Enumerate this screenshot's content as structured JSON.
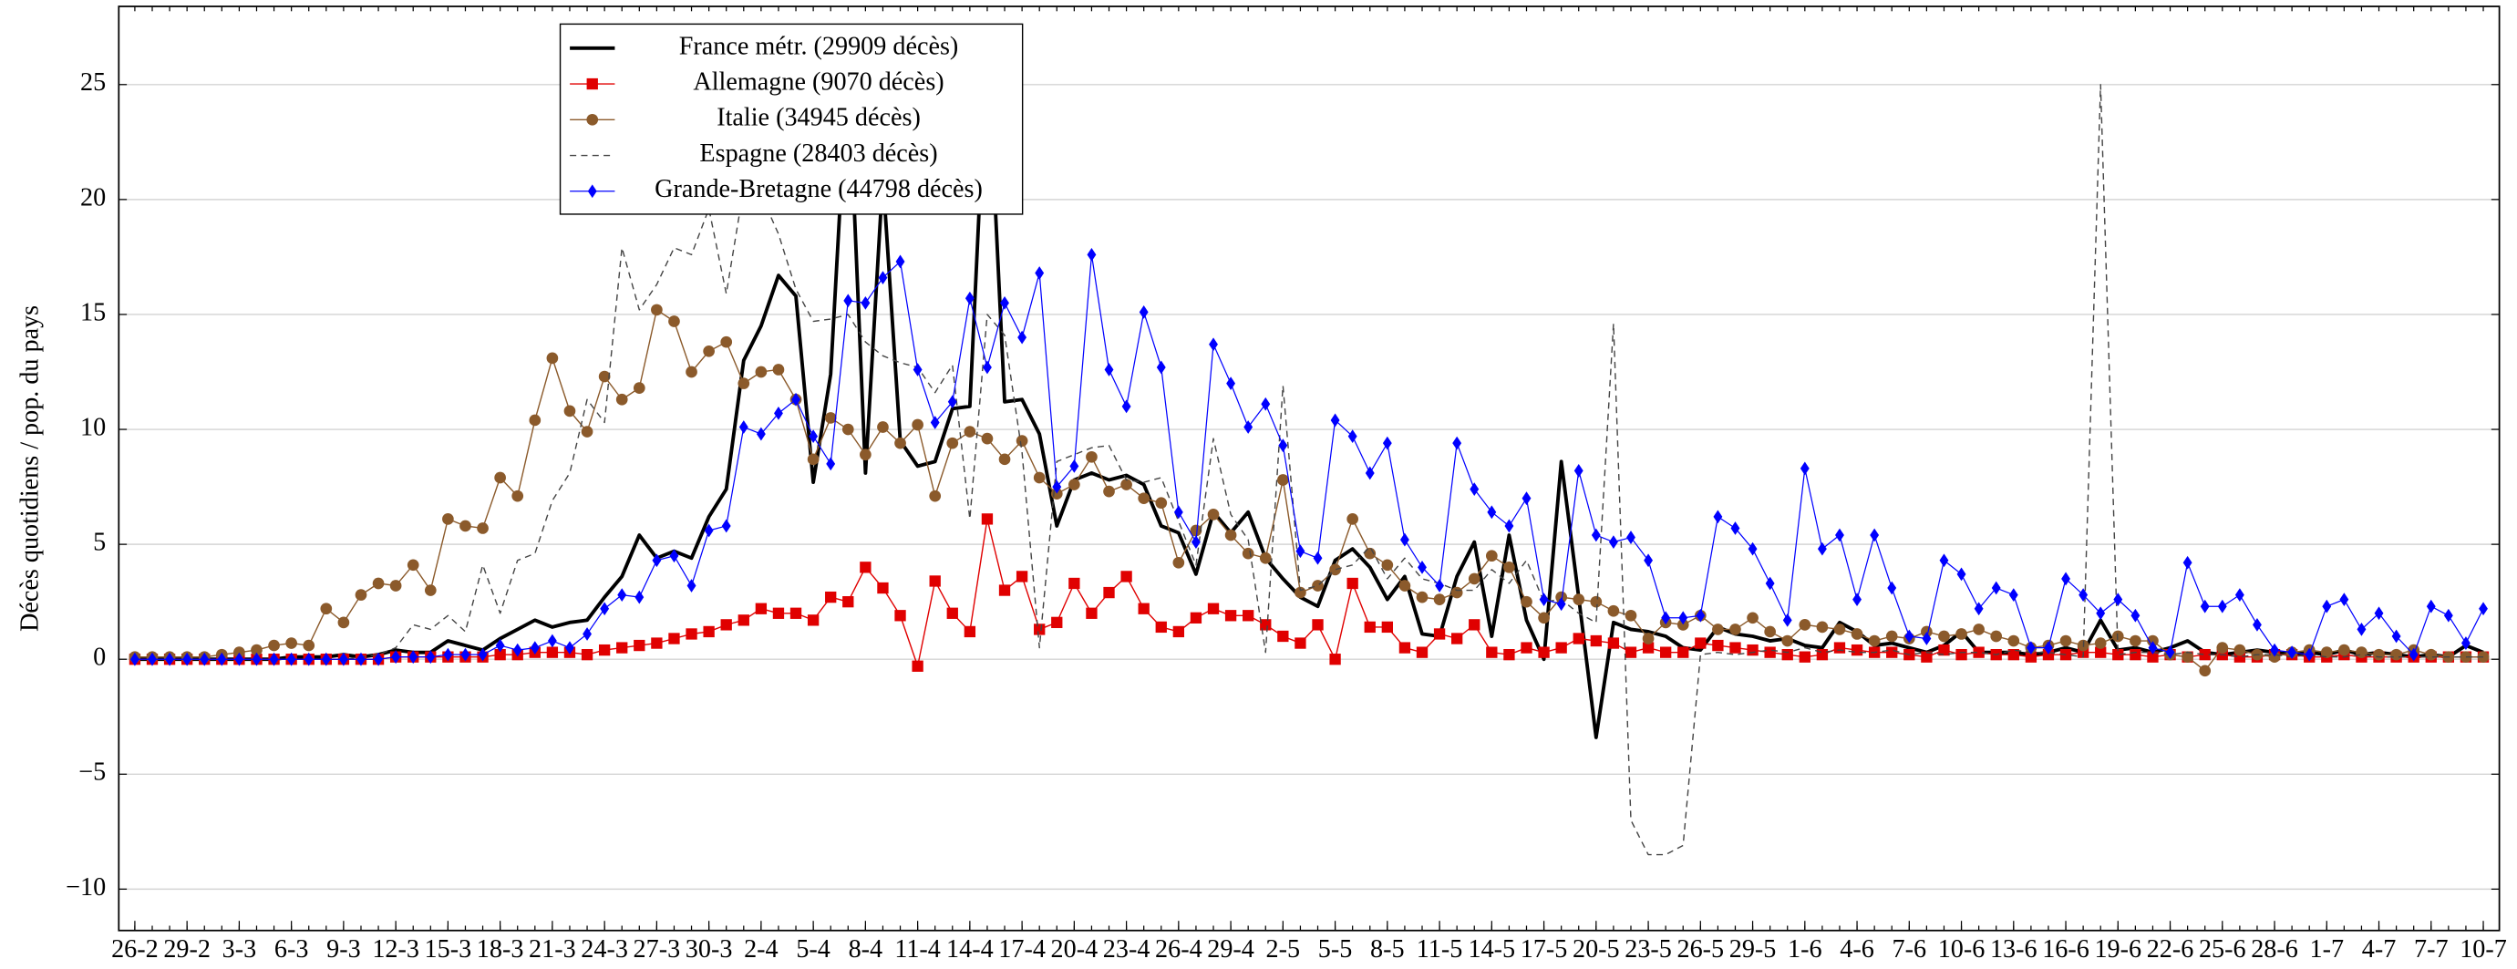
{
  "chart_data": {
    "type": "line",
    "ylabel": "Décès quotidiens / pop. du pays",
    "ylim": [
      -11.8,
      28.4
    ],
    "yticks": [
      {
        "value": -10,
        "label": "−10"
      },
      {
        "value": -5,
        "label": "−5"
      },
      0,
      5,
      10,
      15,
      20,
      25
    ],
    "grid": true,
    "legend": "upper-left",
    "categories": [
      "26-2",
      null,
      null,
      "29-2",
      null,
      null,
      "3-3",
      null,
      null,
      "6-3",
      null,
      null,
      "9-3",
      null,
      null,
      "12-3",
      null,
      null,
      "15-3",
      null,
      null,
      "18-3",
      null,
      null,
      "21-3",
      null,
      null,
      "24-3",
      null,
      null,
      "27-3",
      null,
      null,
      "30-3",
      null,
      null,
      "2-4",
      null,
      null,
      "5-4",
      null,
      null,
      "8-4",
      null,
      null,
      "11-4",
      null,
      null,
      "14-4",
      null,
      null,
      "17-4",
      null,
      null,
      "20-4",
      null,
      null,
      "23-4",
      null,
      null,
      "26-4",
      null,
      null,
      "29-4",
      null,
      null,
      "2-5",
      null,
      null,
      "5-5",
      null,
      null,
      "8-5",
      null,
      null,
      "11-5",
      null,
      null,
      "14-5",
      null,
      null,
      "17-5",
      null,
      null,
      "20-5",
      null,
      null,
      "23-5",
      null,
      null,
      "26-5",
      null,
      null,
      "29-5",
      null,
      null,
      "1-6",
      null,
      null,
      "4-6",
      null,
      null,
      "7-6",
      null,
      null,
      "10-6",
      null,
      null,
      "13-6",
      null,
      null,
      "16-6",
      null,
      null,
      "19-6",
      null,
      null,
      "22-6",
      null,
      null,
      "25-6",
      null,
      null,
      "28-6",
      null,
      null,
      "1-7",
      null,
      null,
      "4-7",
      null,
      null,
      "7-7",
      null,
      null,
      "10-7"
    ],
    "series": [
      {
        "name": "France métr. (29909 décès)",
        "color": "#000000",
        "width": 2.2,
        "values": [
          0,
          0,
          0,
          0,
          0,
          0,
          0,
          0,
          0,
          0.1,
          0.1,
          0.1,
          0.2,
          0.1,
          0.2,
          0.4,
          0.3,
          0.3,
          0.8,
          0.6,
          0.4,
          0.9,
          1.3,
          1.7,
          1.4,
          1.6,
          1.7,
          2.7,
          3.6,
          5.4,
          4.4,
          4.7,
          4.4,
          6.2,
          7.4,
          13.0,
          14.5,
          16.7,
          15.8,
          7.7,
          12.4,
          26.0,
          8.1,
          21.0,
          9.5,
          8.4,
          8.6,
          10.9,
          11.0,
          27.0,
          11.2,
          11.3,
          9.8,
          5.8,
          7.8,
          8.1,
          7.8,
          8.0,
          7.6,
          5.8,
          5.5,
          3.7,
          6.4,
          5.5,
          6.4,
          4.4,
          3.5,
          2.7,
          2.3,
          4.3,
          4.8,
          4.0,
          2.6,
          3.6,
          1.1,
          1.0,
          3.6,
          5.1,
          1.0,
          5.4,
          1.7,
          0.0,
          8.6,
          2.7,
          -3.4,
          1.6,
          1.3,
          1.2,
          1.0,
          0.5,
          0.4,
          1.4,
          1.1,
          1.0,
          0.8,
          0.9,
          0.6,
          0.5,
          1.6,
          1.2,
          0.6,
          0.7,
          0.5,
          0.3,
          0.6,
          1.2,
          0.3,
          0.3,
          0.3,
          0.2,
          0.3,
          0.5,
          0.3,
          1.7,
          0.4,
          0.5,
          0.3,
          0.5,
          0.8,
          0.3,
          0.2,
          0.3,
          0.4,
          0.3,
          0.2,
          0.3,
          0.2,
          0.4,
          0.2,
          0.3,
          0.2,
          0.1,
          0.2,
          0.1,
          0.6,
          0.3
        ]
      },
      {
        "name": "Allemagne (9070 décès)",
        "color": "#e00000",
        "width": 0.8,
        "marker": "square",
        "values": [
          0,
          0,
          0,
          0,
          0,
          0,
          0,
          0,
          0,
          0,
          0,
          0,
          0,
          0,
          0,
          0.1,
          0.1,
          0.1,
          0.1,
          0.1,
          0.1,
          0.2,
          0.2,
          0.3,
          0.3,
          0.3,
          0.2,
          0.4,
          0.5,
          0.6,
          0.7,
          0.9,
          1.1,
          1.2,
          1.5,
          1.7,
          2.2,
          2.0,
          2.0,
          1.7,
          2.7,
          2.5,
          4.0,
          3.1,
          1.9,
          -0.3,
          3.4,
          2.0,
          1.2,
          6.1,
          3.0,
          3.6,
          1.3,
          1.6,
          3.3,
          2.0,
          2.9,
          3.6,
          2.2,
          1.4,
          1.2,
          1.8,
          2.2,
          1.9,
          1.9,
          1.5,
          1.0,
          0.7,
          1.5,
          0.0,
          3.3,
          1.4,
          1.4,
          0.5,
          0.3,
          1.1,
          0.9,
          1.5,
          0.3,
          0.2,
          0.5,
          0.3,
          0.5,
          0.9,
          0.8,
          0.7,
          0.3,
          0.5,
          0.3,
          0.3,
          0.7,
          0.6,
          0.5,
          0.4,
          0.3,
          0.2,
          0.1,
          0.2,
          0.5,
          0.4,
          0.3,
          0.3,
          0.2,
          0.1,
          0.4,
          0.2,
          0.3,
          0.2,
          0.2,
          0.1,
          0.2,
          0.2,
          0.3,
          0.3,
          0.2,
          0.2,
          0.1,
          0.2,
          0.1,
          0.2,
          0.2,
          0.1,
          0.1,
          0.2,
          0.2,
          0.1,
          0.1,
          0.2,
          0.1,
          0.1,
          0.1,
          0.1,
          0.1,
          0.1,
          0.1,
          0.1
        ]
      },
      {
        "name": "Italie (34945 décès)",
        "color": "#8b5a2b",
        "width": 0.8,
        "marker": "circle",
        "values": [
          0.1,
          0.1,
          0.1,
          0.1,
          0.1,
          0.2,
          0.3,
          0.4,
          0.6,
          0.7,
          0.6,
          2.2,
          1.6,
          2.8,
          3.3,
          3.2,
          4.1,
          3.0,
          6.1,
          5.8,
          5.7,
          7.9,
          7.1,
          10.4,
          13.1,
          10.8,
          9.9,
          12.3,
          11.3,
          11.8,
          15.2,
          14.7,
          12.5,
          13.4,
          13.8,
          12.0,
          12.5,
          12.6,
          11.3,
          8.7,
          10.5,
          10.0,
          8.9,
          10.1,
          9.4,
          10.2,
          7.1,
          9.4,
          9.9,
          9.6,
          8.7,
          9.5,
          7.9,
          7.2,
          7.6,
          8.8,
          7.3,
          7.6,
          7.0,
          6.8,
          4.2,
          5.6,
          6.3,
          5.4,
          4.6,
          4.4,
          7.8,
          2.9,
          3.2,
          3.9,
          6.1,
          4.6,
          4.1,
          3.2,
          2.7,
          2.6,
          2.9,
          3.5,
          4.5,
          4.0,
          2.5,
          1.8,
          2.7,
          2.6,
          2.5,
          2.1,
          1.9,
          0.9,
          1.6,
          1.5,
          1.9,
          1.3,
          1.3,
          1.8,
          1.2,
          0.8,
          1.5,
          1.4,
          1.3,
          1.1,
          0.8,
          1.0,
          0.9,
          1.2,
          1.0,
          1.1,
          1.3,
          1.0,
          0.8,
          0.5,
          0.6,
          0.8,
          0.6,
          0.7,
          1.0,
          0.8,
          0.8,
          0.2,
          0.1,
          -0.5,
          0.5,
          0.4,
          0.2,
          0.1,
          0.3,
          0.4,
          0.3,
          0.4,
          0.3,
          0.2,
          0.2,
          0.4,
          0.2,
          0.1,
          0.1,
          0.1
        ]
      },
      {
        "name": "Espagne (28403 décès)",
        "color": "#444444",
        "width": 0.8,
        "dash": "4,3",
        "values": [
          0,
          0,
          0,
          0,
          0,
          0,
          0,
          0,
          0,
          0,
          0,
          0,
          0,
          0.1,
          0.2,
          0.5,
          1.5,
          1.3,
          1.9,
          1.2,
          4.1,
          2.0,
          4.3,
          4.6,
          6.9,
          8.1,
          11.3,
          10.3,
          17.9,
          15.2,
          16.3,
          17.9,
          17.6,
          19.6,
          15.9,
          20.5,
          20.2,
          18.5,
          16.1,
          14.7,
          14.8,
          15.0,
          13.8,
          13.2,
          12.9,
          12.7,
          11.6,
          12.8,
          6.1,
          15.0,
          14.1,
          9.0,
          0.5,
          8.6,
          8.9,
          9.2,
          9.3,
          7.8,
          7.7,
          7.9,
          6.0,
          4.1,
          9.6,
          6.3,
          5.2,
          0.3,
          11.9,
          3.0,
          3.2,
          3.9,
          4.1,
          4.9,
          3.5,
          4.4,
          3.5,
          3.3,
          3.0,
          3.0,
          3.9,
          3.3,
          4.3,
          2.5,
          2.6,
          2.0,
          1.6,
          14.6,
          -7.0,
          -8.5,
          -8.5,
          -8.1,
          0.2,
          0.3,
          0.2,
          0.3,
          0.4,
          0.3,
          0.5,
          0.3,
          0.4,
          0.3,
          0.3,
          0.4,
          0.2,
          0.3,
          0.2,
          0.3,
          0.3,
          0.2,
          0.4,
          0.3,
          0.3,
          0.2,
          0.1,
          25.0,
          0.2,
          0.3,
          0.3,
          0.2,
          0.3,
          0.2,
          0.2,
          0.1,
          0.2,
          0.2,
          0.1,
          0.2,
          0.1,
          0.1,
          0.2,
          0.1,
          0.1,
          0.1,
          0.1,
          0.1,
          0.1,
          0.1
        ]
      },
      {
        "name": "Grande-Bretagne (44798 décès)",
        "color": "#0000ff",
        "width": 0.7,
        "marker": "diamond",
        "values": [
          0,
          0,
          0,
          0,
          0,
          0,
          0,
          0,
          0,
          0,
          0,
          0,
          0,
          0,
          0,
          0.1,
          0.1,
          0.1,
          0.2,
          0.2,
          0.2,
          0.6,
          0.4,
          0.5,
          0.8,
          0.5,
          1.1,
          2.2,
          2.8,
          2.7,
          4.3,
          4.5,
          3.2,
          5.6,
          5.8,
          10.1,
          9.8,
          10.7,
          11.3,
          9.7,
          8.5,
          15.6,
          15.5,
          16.6,
          17.3,
          12.6,
          10.3,
          11.2,
          15.7,
          12.7,
          15.5,
          14.0,
          16.8,
          7.5,
          8.4,
          17.6,
          12.6,
          11.0,
          15.1,
          12.7,
          6.4,
          5.1,
          13.7,
          12.0,
          10.1,
          11.1,
          9.3,
          4.7,
          4.4,
          10.4,
          9.7,
          8.1,
          9.4,
          5.2,
          4.0,
          3.2,
          9.4,
          7.4,
          6.4,
          5.8,
          7.0,
          2.6,
          2.4,
          8.2,
          5.4,
          5.1,
          5.3,
          4.3,
          1.8,
          1.8,
          1.9,
          6.2,
          5.7,
          4.8,
          3.3,
          1.7,
          8.3,
          4.8,
          5.4,
          2.6,
          5.4,
          3.1,
          1.0,
          0.9,
          4.3,
          3.7,
          2.2,
          3.1,
          2.8,
          0.5,
          0.5,
          3.5,
          2.8,
          2.0,
          2.6,
          1.9,
          0.5,
          0.3,
          4.2,
          2.3,
          2.3,
          2.8,
          1.5,
          0.4,
          0.3,
          0.2,
          2.3,
          2.6,
          1.3,
          2.0,
          1.0,
          0.2,
          2.3,
          1.9,
          0.7,
          2.2
        ]
      }
    ]
  }
}
